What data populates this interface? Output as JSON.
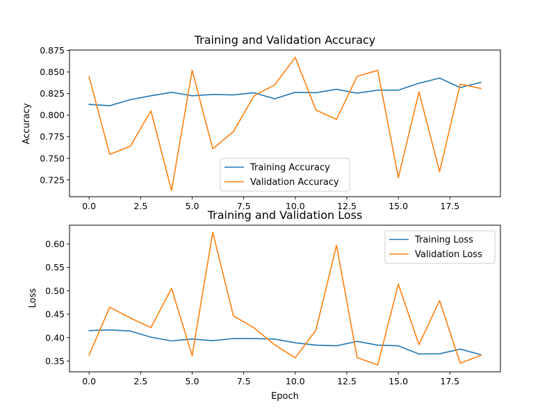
{
  "chart_data": [
    {
      "type": "line",
      "title": "Training and Validation Accuracy",
      "xlabel": "",
      "ylabel": "Accuracy",
      "xlim": [
        -0.95,
        19.95
      ],
      "ylim": [
        0.7055,
        0.8755
      ],
      "xticks": [
        0,
        2.5,
        5,
        7.5,
        10,
        12.5,
        15,
        17.5
      ],
      "xtick_labels": [
        "0.0",
        "2.5",
        "5.0",
        "7.5",
        "10.0",
        "12.5",
        "15.0",
        "17.5"
      ],
      "yticks": [
        0.725,
        0.75,
        0.775,
        0.8,
        0.825,
        0.85,
        0.875
      ],
      "ytick_labels": [
        "0.725",
        "0.750",
        "0.775",
        "0.800",
        "0.825",
        "0.850",
        "0.875"
      ],
      "legend_position": "lower-center",
      "x": [
        0,
        1,
        2,
        3,
        4,
        5,
        6,
        7,
        8,
        9,
        10,
        11,
        12,
        13,
        14,
        15,
        16,
        17,
        18,
        19
      ],
      "series": [
        {
          "name": "Training Accuracy",
          "color": "#1f77b4",
          "values": [
            0.8125,
            0.811,
            0.818,
            0.8225,
            0.8265,
            0.8225,
            0.824,
            0.8235,
            0.826,
            0.819,
            0.8265,
            0.826,
            0.83,
            0.8255,
            0.829,
            0.829,
            0.837,
            0.843,
            0.832,
            0.838
          ]
        },
        {
          "name": "Validation Accuracy",
          "color": "#ff7f0e",
          "values": [
            0.8445,
            0.7545,
            0.764,
            0.805,
            0.7125,
            0.852,
            0.761,
            0.781,
            0.8225,
            0.835,
            0.867,
            0.806,
            0.795,
            0.845,
            0.852,
            0.7275,
            0.827,
            0.7345,
            0.836,
            0.831
          ]
        }
      ]
    },
    {
      "type": "line",
      "title": "Training and Validation Loss",
      "xlabel": "Epoch",
      "ylabel": "Loss",
      "xlim": [
        -0.95,
        19.95
      ],
      "ylim": [
        0.327,
        0.64
      ],
      "xticks": [
        0,
        2.5,
        5,
        7.5,
        10,
        12.5,
        15,
        17.5
      ],
      "xtick_labels": [
        "0.0",
        "2.5",
        "5.0",
        "7.5",
        "10.0",
        "12.5",
        "15.0",
        "17.5"
      ],
      "yticks": [
        0.35,
        0.4,
        0.45,
        0.5,
        0.55,
        0.6
      ],
      "ytick_labels": [
        "0.35",
        "0.40",
        "0.45",
        "0.50",
        "0.55",
        "0.60"
      ],
      "legend_position": "upper-right",
      "x": [
        0,
        1,
        2,
        3,
        4,
        5,
        6,
        7,
        8,
        9,
        10,
        11,
        12,
        13,
        14,
        15,
        16,
        17,
        18,
        19
      ],
      "series": [
        {
          "name": "Training Loss",
          "color": "#1f77b4",
          "values": [
            0.415,
            0.4165,
            0.414,
            0.401,
            0.393,
            0.397,
            0.3935,
            0.398,
            0.398,
            0.397,
            0.389,
            0.384,
            0.3825,
            0.392,
            0.384,
            0.3825,
            0.365,
            0.3655,
            0.3755,
            0.3635
          ]
        },
        {
          "name": "Validation Loss",
          "color": "#ff7f0e",
          "values": [
            0.3625,
            0.465,
            0.442,
            0.4215,
            0.505,
            0.3615,
            0.6245,
            0.4465,
            0.421,
            0.3845,
            0.357,
            0.416,
            0.597,
            0.3575,
            0.3415,
            0.514,
            0.385,
            0.479,
            0.3455,
            0.362
          ]
        }
      ]
    }
  ]
}
